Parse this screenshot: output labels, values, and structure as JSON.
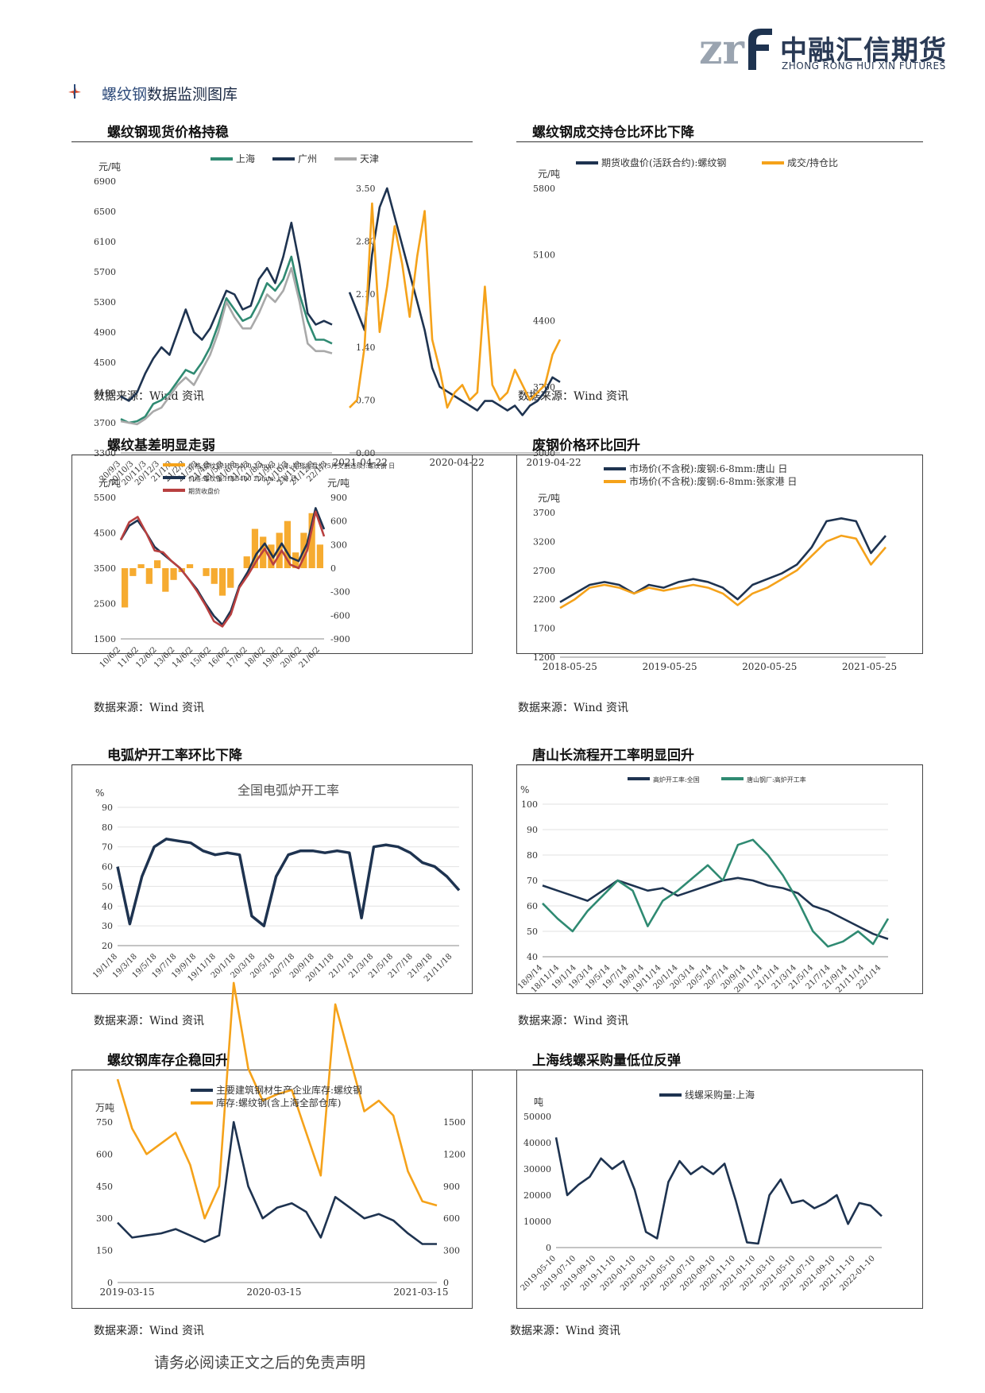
{
  "header": {
    "logo_mark": "zrf",
    "logo_cn": "中融汇信期货",
    "logo_en": "ZHONG RONG HUI XIN FUTURES"
  },
  "section": {
    "title_highlight": "螺纹钢",
    "title_rest": "数据监测图库"
  },
  "source_label": "数据来源：Wind 资讯",
  "footer": "请务必阅读正文之后的免责声明",
  "colors": {
    "navy": "#1e3350",
    "orange": "#f5a21a",
    "teal": "#2f8a72",
    "gray": "#a9a9a9",
    "red": "#b84040"
  },
  "charts": [
    {
      "title": "螺纹钢现货价格持稳",
      "chart_data": {
        "type": "line",
        "unit": "元/吨",
        "yticks": [
          "6900",
          "6500",
          "6100",
          "5700",
          "5300",
          "4900",
          "4500",
          "4100",
          "3700",
          "3300"
        ],
        "xticks": [
          "20/9/3",
          "20/10/3",
          "20/11/3",
          "20/12/3",
          "21/1/3",
          "21/2/3",
          "21/3/3",
          "21/4/3",
          "21/5/3",
          "21/6/3",
          "21/7/3",
          "21/8/3",
          "21/9/3",
          "21/10/3",
          "21/11/3",
          "21/12/3",
          "22/1/3"
        ],
        "ylim": [
          3300,
          6900
        ],
        "series": [
          {
            "name": "上海",
            "color": "#2f8a72",
            "values": [
              3750,
              3700,
              3720,
              3780,
              3950,
              4000,
              4100,
              4250,
              4400,
              4350,
              4500,
              4700,
              5000,
              5350,
              5200,
              5050,
              5100,
              5300,
              5550,
              5450,
              5600,
              5900,
              5400,
              5050,
              4800,
              4800,
              4750
            ]
          },
          {
            "name": "广州",
            "color": "#1e3350",
            "values": [
              4050,
              3990,
              4100,
              4350,
              4550,
              4700,
              4600,
              4900,
              5200,
              4900,
              4800,
              4950,
              5200,
              5450,
              5400,
              5200,
              5250,
              5600,
              5750,
              5550,
              5900,
              6350,
              5800,
              5150,
              5000,
              5050,
              5000
            ]
          },
          {
            "name": "天津",
            "color": "#a9a9a9",
            "values": [
              3720,
              3700,
              3680,
              3750,
              3850,
              3900,
              4050,
              4200,
              4300,
              4200,
              4400,
              4600,
              4900,
              5300,
              5100,
              4950,
              4950,
              5150,
              5400,
              5300,
              5450,
              5750,
              5300,
              4750,
              4650,
              4650,
              4620
            ]
          }
        ]
      }
    },
    {
      "title": "螺纹钢成交持仓比环比下降",
      "chart_data": {
        "type": "line",
        "unit": "元/吨",
        "yticks": [
          "5800",
          "5100",
          "4400",
          "3700",
          "3000"
        ],
        "y2ticks": [
          "3.50",
          "2.80",
          "2.10",
          "1.40",
          "0.70",
          "0.00"
        ],
        "xticks": [
          "2019-04-22",
          "2020-04-22",
          "2021-04-22"
        ],
        "ylim": [
          3000,
          5800
        ],
        "y2lim": [
          0,
          3.5
        ],
        "series": [
          {
            "name": "期货收盘价(活跃合约):螺纹钢",
            "color": "#1e3350",
            "values": [
              3750,
              3800,
              3650,
              3550,
              3500,
              3400,
              3500,
              3450,
              3500,
              3550,
              3550,
              3450,
              3500,
              3550,
              3600,
              3650,
              3700,
              3900,
              4300,
              4600,
              4900,
              5200,
              5500,
              5800,
              5600,
              5100,
              4300,
              4500,
              4700
            ]
          },
          {
            "name": "成交/持仓比",
            "color": "#f5a21a",
            "values": [
              1.5,
              1.3,
              0.9,
              0.8,
              0.7,
              0.9,
              1.1,
              0.8,
              0.7,
              0.9,
              2.2,
              0.8,
              0.7,
              0.9,
              0.8,
              0.6,
              1.1,
              1.5,
              3.2,
              2.6,
              1.8,
              2.5,
              3.0,
              2.2,
              1.6,
              3.3,
              1.4,
              0.7,
              0.6
            ]
          }
        ]
      }
    },
    {
      "title": "螺纹基差明显走弱",
      "chart_data": {
        "type": "bar+line",
        "unit": "元/吨",
        "unit_right": "元/吨",
        "yticks": [
          "5500",
          "4500",
          "3500",
          "2500",
          "1500"
        ],
        "y2ticks": [
          "900",
          "600",
          "300",
          "0",
          "-300",
          "-600",
          "-900"
        ],
        "xticks": [
          "10/6/2",
          "11/6/2",
          "12/6/2",
          "13/6/2",
          "14/6/2",
          "15/6/2",
          "16/6/2",
          "17/6/2",
          "18/6/2",
          "19/6/2",
          "20/6/2",
          "21/6/2"
        ],
        "ylim": [
          1500,
          5500
        ],
        "y2lim": [
          -900,
          900
        ],
        "series": [
          {
            "name": "价格:螺纹钢:HRB400 20mm:上海:-期货收盘价(5月交割连续):螺纹钢 日",
            "color": "#f5a21a",
            "values": [
              -500,
              -100,
              50,
              -200,
              100,
              -300,
              -150,
              -50,
              50,
              0,
              -100,
              -200,
              -350,
              -250,
              0,
              150,
              500,
              400,
              300,
              450,
              600,
              200,
              450,
              700,
              300
            ]
          },
          {
            "name": "价格:螺纹钢:HRB400 20mm:上海 日",
            "color": "#1e3350",
            "values": [
              4300,
              4700,
              4850,
              4500,
              4100,
              3900,
              3700,
              3500,
              3200,
              2900,
              2500,
              2150,
              1900,
              2300,
              3000,
              3400,
              3900,
              4200,
              3800,
              4200,
              3800,
              3700,
              4200,
              5200,
              4600
            ]
          },
          {
            "name": "期货收盘价",
            "color": "#b84040",
            "values": [
              4300,
              4800,
              4950,
              4500,
              4000,
              3950,
              3700,
              3500,
              3200,
              2850,
              2450,
              2000,
              1850,
              2200,
              2950,
              3300,
              3700,
              4050,
              3600,
              4000,
              3600,
              3500,
              4000,
              5100,
              4400
            ]
          }
        ]
      }
    },
    {
      "title": "废钢价格环比回升",
      "chart_data": {
        "type": "line",
        "unit": "元/吨",
        "yticks": [
          "3700",
          "3200",
          "2700",
          "2200",
          "1700",
          "1200"
        ],
        "xticks": [
          "2018-05-25",
          "2019-05-25",
          "2020-05-25",
          "2021-05-25"
        ],
        "ylim": [
          1200,
          3700
        ],
        "series": [
          {
            "name": "市场价(不含税):废钢:6-8mm:唐山 日",
            "color": "#1e3350",
            "values": [
              2150,
              2300,
              2450,
              2500,
              2450,
              2300,
              2450,
              2400,
              2500,
              2550,
              2500,
              2400,
              2200,
              2450,
              2550,
              2650,
              2800,
              3100,
              3550,
              3600,
              3550,
              3000,
              3300
            ]
          },
          {
            "name": "市场价(不含税):废钢:6-8mm:张家港 日",
            "color": "#f5a21a",
            "values": [
              2050,
              2200,
              2400,
              2450,
              2400,
              2300,
              2400,
              2350,
              2400,
              2450,
              2400,
              2300,
              2100,
              2300,
              2400,
              2550,
              2700,
              2950,
              3200,
              3300,
              3250,
              2800,
              3100
            ]
          }
        ]
      }
    },
    {
      "title": "电弧炉开工率环比下降",
      "chart_data": {
        "type": "line",
        "unit": "%",
        "inner_title": "全国电弧炉开工率",
        "yticks": [
          "90",
          "80",
          "70",
          "60",
          "50",
          "40",
          "30",
          "20"
        ],
        "xticks": [
          "19/1/18",
          "19/3/18",
          "19/5/18",
          "19/7/18",
          "19/9/18",
          "19/11/18",
          "20/1/18",
          "20/3/18",
          "20/5/18",
          "20/7/18",
          "20/9/18",
          "20/11/18",
          "21/1/18",
          "21/3/18",
          "21/5/18",
          "21/7/18",
          "21/9/18",
          "21/11/18"
        ],
        "ylim": [
          20,
          90
        ],
        "series": [
          {
            "name": "全国电弧炉开工率",
            "color": "#1e3350",
            "values": [
              60,
              31,
              55,
              70,
              74,
              73,
              72,
              68,
              66,
              67,
              66,
              35,
              30,
              55,
              66,
              68,
              68,
              67,
              68,
              67,
              34,
              70,
              71,
              70,
              67,
              62,
              60,
              55,
              48
            ]
          }
        ]
      }
    },
    {
      "title": "唐山长流程开工率明显回升",
      "chart_data": {
        "type": "line",
        "unit": "%",
        "yticks": [
          "100",
          "90",
          "80",
          "70",
          "60",
          "50",
          "40"
        ],
        "xticks": [
          "18/9/14",
          "18/11/14",
          "19/1/14",
          "19/3/14",
          "19/5/14",
          "19/7/14",
          "19/9/14",
          "19/11/14",
          "20/1/14",
          "20/3/14",
          "20/5/14",
          "20/7/14",
          "20/9/14",
          "20/11/14",
          "21/1/14",
          "21/3/14",
          "21/5/14",
          "21/7/14",
          "21/9/14",
          "21/11/14",
          "22/1/14"
        ],
        "ylim": [
          40,
          100
        ],
        "series": [
          {
            "name": "高炉开工率:全国",
            "color": "#1e3350",
            "values": [
              68,
              66,
              64,
              62,
              66,
              70,
              68,
              66,
              67,
              64,
              66,
              68,
              70,
              71,
              70,
              68,
              67,
              65,
              60,
              58,
              55,
              52,
              49,
              47
            ]
          },
          {
            "name": "唐山钢厂:高炉开工率",
            "color": "#2f8a72",
            "values": [
              61,
              55,
              50,
              58,
              64,
              70,
              66,
              52,
              62,
              66,
              71,
              76,
              70,
              84,
              86,
              80,
              72,
              62,
              50,
              44,
              46,
              50,
              45,
              55
            ]
          }
        ]
      }
    },
    {
      "title": "螺纹钢库存企稳回升",
      "chart_data": {
        "type": "line",
        "unit": "万吨",
        "yticks": [
          "750",
          "600",
          "450",
          "300",
          "150",
          "0"
        ],
        "y2ticks": [
          "1500",
          "1200",
          "900",
          "600",
          "300",
          "0"
        ],
        "xticks": [
          "2019-03-15",
          "2020-03-15",
          "2021-03-15"
        ],
        "ylim": [
          0,
          750
        ],
        "y2lim": [
          0,
          1500
        ],
        "series": [
          {
            "name": "主要建筑钢材生产企业库存:螺纹钢",
            "color": "#1e3350",
            "values": [
              280,
              210,
              220,
              230,
              250,
              220,
              190,
              220,
              750,
              450,
              300,
              350,
              370,
              330,
              210,
              400,
              350,
              300,
              320,
              290,
              230,
              180,
              180
            ]
          },
          {
            "name": "库存:螺纹钢(含上海全部仓库)",
            "color": "#f5a21a",
            "values": [
              950,
              720,
              600,
              650,
              700,
              550,
              300,
              450,
              1400,
              1000,
              850,
              880,
              900,
              700,
              500,
              1300,
              1050,
              800,
              850,
              780,
              520,
              380,
              360
            ]
          }
        ]
      }
    },
    {
      "title": "上海线螺采购量低位反弹",
      "chart_data": {
        "type": "line",
        "unit": "吨",
        "yticks": [
          "50000",
          "40000",
          "30000",
          "20000",
          "10000",
          "0"
        ],
        "xticks": [
          "2019-05-10",
          "2019-07-10",
          "2019-09-10",
          "2019-11-10",
          "2020-01-10",
          "2020-03-10",
          "2020-05-10",
          "2020-07-10",
          "2020-09-10",
          "2020-11-10",
          "2021-01-10",
          "2021-03-10",
          "2021-05-10",
          "2021-07-10",
          "2021-09-10",
          "2021-11-10",
          "2022-01-10"
        ],
        "ylim": [
          0,
          50000
        ],
        "series": [
          {
            "name": "线螺采购量:上海",
            "color": "#1e3350",
            "values": [
              42000,
              20000,
              24000,
              27000,
              34000,
              30000,
              33000,
              22000,
              6000,
              3500,
              25000,
              33000,
              28000,
              31000,
              28000,
              32000,
              18000,
              2000,
              1500,
              20000,
              26000,
              17000,
              18000,
              15000,
              17000,
              20000,
              9000,
              17000,
              16000,
              12000
            ]
          }
        ]
      }
    }
  ]
}
